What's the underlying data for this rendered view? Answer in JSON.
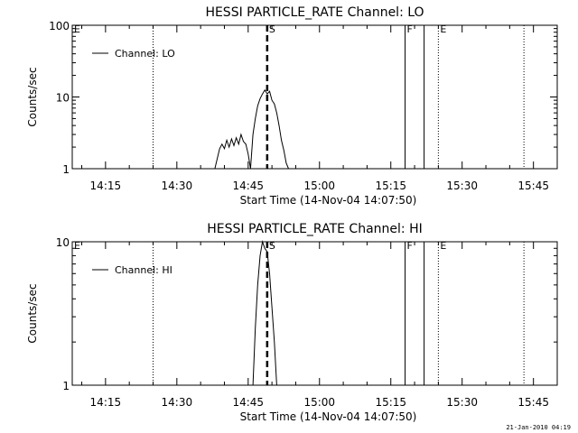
{
  "chart_data": [
    {
      "type": "line",
      "title": "HESSI PARTICLE_RATE Channel: LO",
      "xlabel": "Start Time (14-Nov-04 14:07:50)",
      "ylabel": "Counts/sec",
      "yscale": "log",
      "ylim": [
        1,
        100
      ],
      "y_ticks": [
        1,
        10,
        100
      ],
      "y_tick_labels": [
        "1",
        "10",
        "100"
      ],
      "xlim": [
        "14:08",
        "15:50"
      ],
      "x_ticks": [
        "14:15",
        "14:30",
        "14:45",
        "15:00",
        "15:15",
        "15:30",
        "15:45"
      ],
      "grid": false,
      "legend_position": "top-left",
      "series": [
        {
          "name": "Channel: LO",
          "x": [
            "14:38:00",
            "14:39:00",
            "14:39:30",
            "14:40:00",
            "14:40:30",
            "14:41:00",
            "14:41:30",
            "14:42:00",
            "14:42:30",
            "14:43:00",
            "14:43:30",
            "14:44:00",
            "14:44:30",
            "14:45:00",
            "14:45:30",
            "14:46:00",
            "14:46:30",
            "14:47:00",
            "14:47:30",
            "14:48:00",
            "14:48:30",
            "14:49:00",
            "14:49:30",
            "14:50:00",
            "14:50:30",
            "14:51:00",
            "14:51:30",
            "14:52:00",
            "14:52:30",
            "14:53:00",
            "14:53:30"
          ],
          "y": [
            1.0,
            1.9,
            2.2,
            1.9,
            2.5,
            2.0,
            2.6,
            2.1,
            2.7,
            2.2,
            3.0,
            2.4,
            2.2,
            1.6,
            1.0,
            3.0,
            5.0,
            7.5,
            9.5,
            11.0,
            12.5,
            11.0,
            12.0,
            9.0,
            8.0,
            6.0,
            4.0,
            2.5,
            1.8,
            1.2,
            1.0
          ]
        }
      ],
      "markers": [
        {
          "label": "E",
          "x": "14:08",
          "style": "none"
        },
        {
          "label": "",
          "x": "14:25",
          "style": "dotted"
        },
        {
          "label": "S",
          "x": "14:49",
          "style": "dashed"
        },
        {
          "label": "F",
          "x": "15:18",
          "style": "solid"
        },
        {
          "label": "",
          "x": "15:22",
          "style": "solid"
        },
        {
          "label": "E",
          "x": "15:25",
          "style": "dotted"
        },
        {
          "label": "",
          "x": "15:43",
          "style": "dotted"
        }
      ]
    },
    {
      "type": "line",
      "title": "HESSI PARTICLE_RATE Channel: HI",
      "xlabel": "Start Time (14-Nov-04 14:07:50)",
      "ylabel": "Counts/sec",
      "yscale": "log",
      "ylim": [
        1,
        10
      ],
      "y_ticks": [
        1,
        10
      ],
      "y_tick_labels": [
        "1",
        "10"
      ],
      "xlim": [
        "14:08",
        "15:50"
      ],
      "x_ticks": [
        "14:15",
        "14:30",
        "14:45",
        "15:00",
        "15:15",
        "15:30",
        "15:45"
      ],
      "grid": false,
      "legend_position": "top-left",
      "series": [
        {
          "name": "Channel: HI",
          "x": [
            "14:46:00",
            "14:46:30",
            "14:47:00",
            "14:47:30",
            "14:48:00",
            "14:48:30",
            "14:49:00",
            "14:49:30",
            "14:50:00",
            "14:50:30",
            "14:51:00"
          ],
          "y": [
            1.0,
            2.5,
            5.0,
            8.0,
            10.0,
            9.0,
            8.5,
            6.0,
            3.5,
            2.0,
            1.0
          ]
        }
      ],
      "markers": [
        {
          "label": "E",
          "x": "14:08",
          "style": "none"
        },
        {
          "label": "",
          "x": "14:25",
          "style": "dotted"
        },
        {
          "label": "S",
          "x": "14:49",
          "style": "dashed"
        },
        {
          "label": "F",
          "x": "15:18",
          "style": "solid"
        },
        {
          "label": "",
          "x": "15:22",
          "style": "solid"
        },
        {
          "label": "E",
          "x": "15:25",
          "style": "dotted"
        },
        {
          "label": "",
          "x": "15:43",
          "style": "dotted"
        }
      ]
    }
  ],
  "footer": {
    "timestamp": "21-Jan-2010 04:19"
  }
}
